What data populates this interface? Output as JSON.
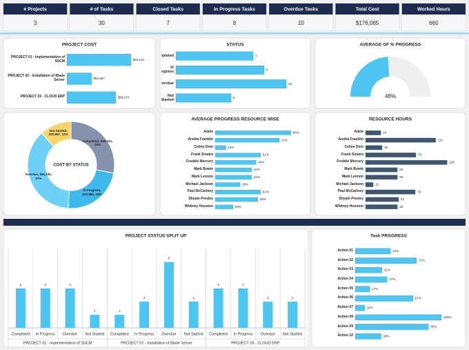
{
  "kpis": [
    {
      "label": "# Projects",
      "value": 3
    },
    {
      "label": "# of Tasks",
      "value": 30
    },
    {
      "label": "Closed Tasks",
      "value": 7
    },
    {
      "label": "In Progress Tasks",
      "value": 8
    },
    {
      "label": "Overdue Tasks",
      "value": 10
    },
    {
      "label": "Total Cost",
      "value": "$176,065"
    },
    {
      "label": "Worked Hours",
      "value": 660
    }
  ],
  "chart_data": [
    {
      "type": "bar",
      "horizontal": true,
      "title": "PROJECT COST",
      "categories": [
        "PROJECT 01 - Implementation of SSCM",
        "PROJECT 02 - Installation of Blade Server",
        "PROJECT 03 - CLOUD ERP"
      ],
      "values": [
        62134,
        54657,
        59274
      ],
      "value_labels": [
        "$62,134",
        "$54,657",
        "$59,274"
      ],
      "color": "#4fc6f2",
      "xlim": [
        50000,
        64000
      ]
    },
    {
      "type": "bar",
      "horizontal": true,
      "title": "STATUS",
      "categories": [
        "Completed",
        "In Progress",
        "Overdue",
        "Not Started"
      ],
      "values": [
        7,
        8,
        10,
        5
      ],
      "color": "#4fc6f2",
      "xlim": [
        0,
        12
      ]
    },
    {
      "type": "gauge",
      "title": "AVERAGE OF % PROGRESS",
      "values": [
        48
      ],
      "value_labels": [
        "48%"
      ],
      "range": [
        0,
        100
      ],
      "color": "#4fc6f2",
      "track_color": "#efefef"
    },
    {
      "type": "donut",
      "title": "COST BY STATUS",
      "categories": [
        "Completed",
        "In Progress",
        "Overdue",
        "Not Started"
      ],
      "values": [
        49310,
        40685,
        65105,
        20967
      ],
      "value_labels": [
        "Completed, $49,310, 28%",
        "In Progress, $40,685, 23%",
        "Overdue, $65,105, 37%",
        "Not Started, $20,967, 12%"
      ],
      "colors": [
        "#8592ae",
        "#3fb8ec",
        "#6ed0f6",
        "#f8d46a"
      ]
    },
    {
      "type": "bar",
      "horizontal": true,
      "title": "AVERAGE PROGRESS RESOURCE WISE",
      "categories": [
        "Adele",
        "Aretha Franklin",
        "Celine Dion",
        "Frank Sinatra",
        "Freddie Mercury",
        "Mark Bowie",
        "Mark Lennon",
        "Michael Jackson",
        "Paul McCartney",
        "Shyam Presley",
        "Whitney Houston"
      ],
      "values": [
        85,
        72,
        12,
        51,
        46,
        41,
        41,
        28,
        51,
        48,
        20
      ],
      "value_labels": [
        "85%",
        "72%",
        "12%",
        "51%",
        "46%",
        "41%",
        "41%",
        "28%",
        "51%",
        "48%",
        "20%"
      ],
      "color": "#4fc6f2",
      "xlim": [
        0,
        100
      ]
    },
    {
      "type": "bar",
      "horizontal": true,
      "title": "RESOURCE HOURS",
      "categories": [
        "Adele",
        "Aretha Franklin",
        "Celine Dion",
        "Frank Sinatra",
        "Freddie Mercury",
        "Mark Bowie",
        "Mark Lennon",
        "Michael Jackson",
        "Paul McCartney",
        "Shyam Presley",
        "Whitney Houston"
      ],
      "values": [
        24,
        110,
        26,
        79,
        128,
        50,
        50,
        12,
        78,
        52,
        50
      ],
      "color": "#44546a",
      "xlim": [
        0,
        145
      ]
    },
    {
      "type": "bar",
      "horizontal": false,
      "title": "PROJECT STATUS SPLIT UP",
      "color": "#4fc6f2",
      "ylim": [
        0,
        5.5
      ],
      "groups": [
        {
          "name": "PROJECT 01 - Implementation of SSCM",
          "categories": [
            "Completed",
            "In Progress",
            "Overdue",
            "Not Started"
          ],
          "values": [
            3,
            3,
            3,
            1
          ]
        },
        {
          "name": "PROJECT 02 - Installation of Blade Server",
          "categories": [
            "Completed",
            "In Progress",
            "Overdue",
            "Not Started"
          ],
          "values": [
            1,
            2,
            5,
            2
          ]
        },
        {
          "name": "PROJECT 03 - CLOUD ERP",
          "categories": [
            "Completed",
            "In Progress",
            "Overdue",
            "Not Started"
          ],
          "values": [
            3,
            3,
            2,
            2
          ]
        }
      ]
    },
    {
      "type": "bar",
      "horizontal": true,
      "title": "Task PROGRESS",
      "categories": [
        "Action 01",
        "Action 02",
        "Action 03",
        "Action 04",
        "Action 05",
        "Action 06",
        "Action 07",
        "Action 08",
        "Action 09",
        "Action 10"
      ],
      "values": [
        41,
        71,
        31,
        37,
        17,
        67,
        11,
        100,
        85,
        30
      ],
      "value_labels": [
        "41%",
        "71%",
        "31%",
        "37%",
        "17%",
        "67%",
        "11%",
        "100%",
        "85%",
        "30%"
      ],
      "color": "#4fc6f2",
      "xlim": [
        0,
        120
      ]
    }
  ]
}
